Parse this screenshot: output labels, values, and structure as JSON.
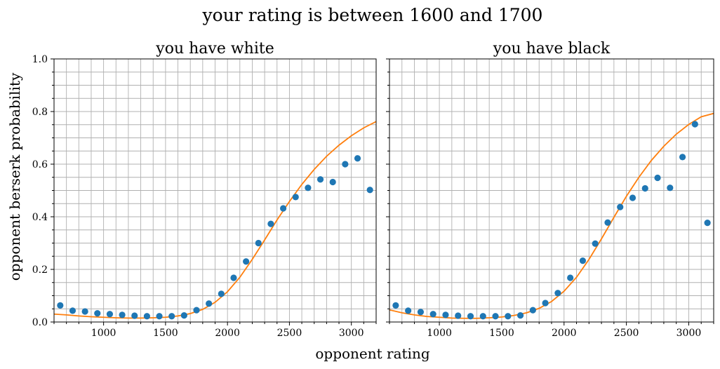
{
  "figure": {
    "title": "your rating is between 1600 and 1700",
    "xlabel": "opponent rating",
    "ylabel": "opponent berserk probability"
  },
  "colors": {
    "points": "#1f77b4",
    "fit": "#ff7f0e",
    "grid": "#b0b0b0"
  },
  "chart_data": [
    {
      "type": "scatter",
      "title": "you have white",
      "xlim": [
        600,
        3200
      ],
      "ylim": [
        0.0,
        1.0
      ],
      "x_major_ticks": [
        1000,
        1500,
        2000,
        2500,
        3000
      ],
      "x_major_labels": [
        "1000",
        "1500",
        "2000",
        "2500",
        "3000"
      ],
      "y_major_ticks": [
        0.0,
        0.2,
        0.4,
        0.6,
        0.8,
        1.0
      ],
      "y_major_labels": [
        "0.0",
        "0.2",
        "0.4",
        "0.6",
        "0.8",
        "1.0"
      ],
      "grid": true,
      "series": [
        {
          "kind": "points",
          "x": [
            650,
            750,
            850,
            950,
            1050,
            1150,
            1250,
            1350,
            1450,
            1550,
            1650,
            1750,
            1850,
            1950,
            2050,
            2150,
            2250,
            2350,
            2450,
            2550,
            2650,
            2750,
            2850,
            2950,
            3050,
            3150
          ],
          "y": [
            0.063,
            0.043,
            0.04,
            0.033,
            0.03,
            0.027,
            0.024,
            0.022,
            0.022,
            0.022,
            0.025,
            0.045,
            0.07,
            0.107,
            0.168,
            0.23,
            0.3,
            0.373,
            0.432,
            0.475,
            0.51,
            0.542,
            0.532,
            0.6,
            0.622,
            0.502
          ]
        },
        {
          "kind": "fit",
          "x": [
            600,
            700,
            800,
            900,
            1000,
            1100,
            1200,
            1300,
            1400,
            1500,
            1600,
            1700,
            1800,
            1900,
            2000,
            2100,
            2200,
            2300,
            2400,
            2500,
            2600,
            2700,
            2800,
            2900,
            3000,
            3100,
            3200
          ],
          "y": [
            0.03,
            0.027,
            0.023,
            0.02,
            0.018,
            0.016,
            0.015,
            0.015,
            0.016,
            0.018,
            0.023,
            0.032,
            0.048,
            0.075,
            0.115,
            0.17,
            0.238,
            0.312,
            0.388,
            0.458,
            0.523,
            0.58,
            0.63,
            0.672,
            0.708,
            0.738,
            0.762
          ]
        }
      ]
    },
    {
      "type": "scatter",
      "title": "you have black",
      "xlim": [
        600,
        3200
      ],
      "ylim": [
        0.0,
        1.0
      ],
      "x_major_ticks": [
        1000,
        1500,
        2000,
        2500,
        3000
      ],
      "x_major_labels": [
        "1000",
        "1500",
        "2000",
        "2500",
        "3000"
      ],
      "grid": true,
      "series": [
        {
          "kind": "points",
          "x": [
            650,
            750,
            850,
            950,
            1050,
            1150,
            1250,
            1350,
            1450,
            1550,
            1650,
            1750,
            1850,
            1950,
            2050,
            2150,
            2250,
            2350,
            2450,
            2550,
            2650,
            2750,
            2850,
            2950,
            3050,
            3150
          ],
          "y": [
            0.063,
            0.043,
            0.038,
            0.03,
            0.027,
            0.024,
            0.022,
            0.022,
            0.022,
            0.022,
            0.025,
            0.045,
            0.072,
            0.11,
            0.168,
            0.233,
            0.298,
            0.378,
            0.437,
            0.472,
            0.508,
            0.548,
            0.51,
            0.627,
            0.752,
            0.377
          ]
        },
        {
          "kind": "fit",
          "x": [
            600,
            700,
            800,
            900,
            1000,
            1100,
            1200,
            1300,
            1400,
            1500,
            1600,
            1700,
            1800,
            1900,
            2000,
            2100,
            2200,
            2300,
            2400,
            2500,
            2600,
            2700,
            2800,
            2900,
            3000,
            3100,
            3200
          ],
          "y": [
            0.046,
            0.035,
            0.027,
            0.021,
            0.018,
            0.015,
            0.014,
            0.014,
            0.016,
            0.019,
            0.025,
            0.035,
            0.052,
            0.078,
            0.117,
            0.17,
            0.238,
            0.316,
            0.398,
            0.478,
            0.55,
            0.614,
            0.668,
            0.714,
            0.751,
            0.78,
            0.793
          ]
        }
      ]
    }
  ]
}
